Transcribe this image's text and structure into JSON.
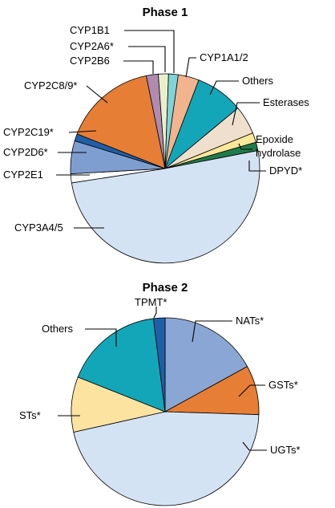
{
  "chart_data": [
    {
      "type": "pie",
      "title": "Phase 1",
      "slices": [
        {
          "label": "CYP1A1/2",
          "value": 3.5,
          "color": "#f2b48c"
        },
        {
          "label": "Others",
          "value": 8.0,
          "color": "#13a6b8"
        },
        {
          "label": "Esterases",
          "value": 4.8,
          "color": "#efdfcd"
        },
        {
          "label": "Epoxide hydrolase",
          "value": 1.6,
          "color": "#fce79a"
        },
        {
          "label": "DPYD*",
          "value": 1.4,
          "color": "#1f7c4a"
        },
        {
          "label": "CYP3A4/5",
          "value": 49.5,
          "color": "#d4e3f4"
        },
        {
          "label": "CYP2E1",
          "value": 1.5,
          "color": "#ffffff"
        },
        {
          "label": "CYP2D6*",
          "value": 5.5,
          "color": "#7f9ed0"
        },
        {
          "label": "CYP2C19*",
          "value": 1.2,
          "color": "#1f5fa8"
        },
        {
          "label": "CYP2C8/9*",
          "value": 15.5,
          "color": "#e67e35"
        },
        {
          "label": "CYP2B6",
          "value": 2.0,
          "color": "#b08ab0"
        },
        {
          "label": "CYP2A6*",
          "value": 1.7,
          "color": "#e9efc9"
        },
        {
          "label": "CYP1B1",
          "value": 1.6,
          "color": "#7fd4da"
        }
      ]
    },
    {
      "type": "pie",
      "title": "Phase 2",
      "slices": [
        {
          "label": "NATs*",
          "value": 17.0,
          "color": "#8aa6d4"
        },
        {
          "label": "GSTs*",
          "value": 8.5,
          "color": "#e67e35"
        },
        {
          "label": "UGTs*",
          "value": 46.0,
          "color": "#d4e3f4"
        },
        {
          "label": "STs*",
          "value": 9.5,
          "color": "#fce3a0"
        },
        {
          "label": "Others",
          "value": 17.0,
          "color": "#13a6b8"
        },
        {
          "label": "TPMT*",
          "value": 2.0,
          "color": "#1f5fa8"
        }
      ]
    }
  ]
}
